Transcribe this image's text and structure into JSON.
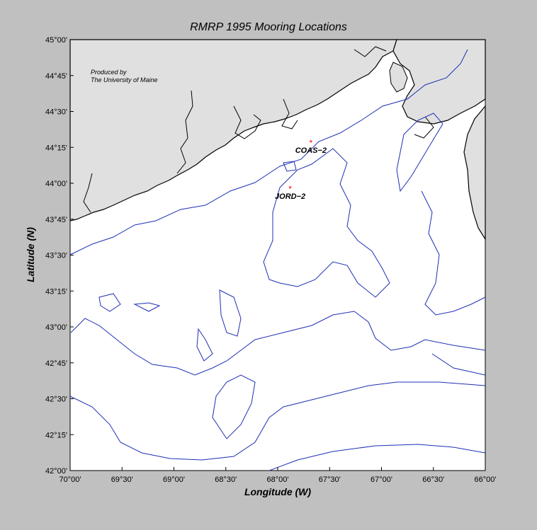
{
  "title": "RMRP 1995 Mooring Locations",
  "xlabel": "Longitude (W)",
  "ylabel": "Latitude (N)",
  "credit_line1": "Produced by",
  "credit_line2": "The University of Maine",
  "x_ticks": [
    "70°00'",
    "69°30'",
    "69°00'",
    "68°30'",
    "68°00'",
    "67°30'",
    "67°00'",
    "66°30'",
    "66°00'"
  ],
  "y_ticks": [
    "45°00'",
    "44°45'",
    "44°30'",
    "44°15'",
    "44°00'",
    "43°45'",
    "43°30'",
    "43°15'",
    "43°00'",
    "42°45'",
    "42°30'",
    "42°15'",
    "42°00'"
  ],
  "moorings": [
    {
      "name": "COAS−2",
      "lon": -67.68,
      "lat": 44.28
    },
    {
      "name": "JORD−2",
      "lon": -67.88,
      "lat": 43.96
    }
  ],
  "colors": {
    "background": "#c0c0c0",
    "land": "#e0e0e0",
    "sea": "#ffffff",
    "coastline": "#000000",
    "bathymetry": "#1f2fb5",
    "mooring_marker": "#ff0000"
  }
}
